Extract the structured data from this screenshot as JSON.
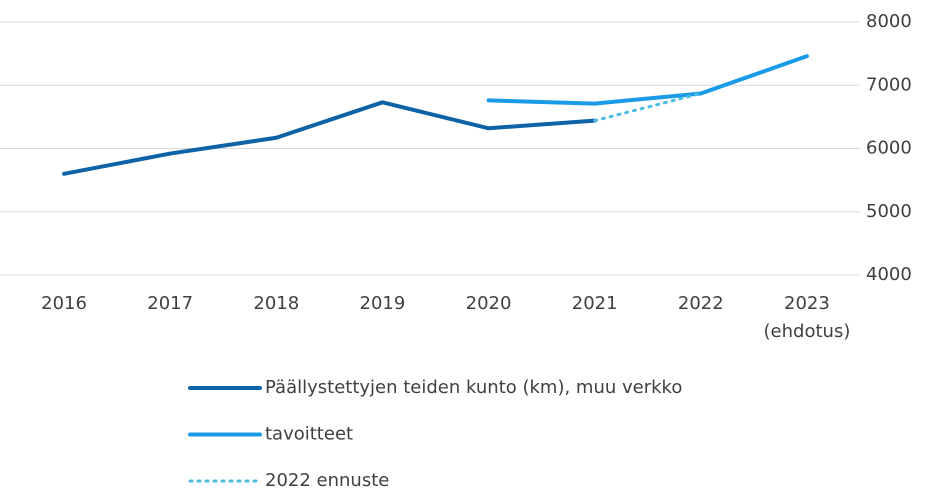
{
  "chart_data": {
    "type": "line",
    "categories": [
      "2016",
      "2017",
      "2018",
      "2019",
      "2020",
      "2021",
      "2022",
      "2023\n(ehdotus)"
    ],
    "series": [
      {
        "name": "Päällystettyjen teiden kunto (km), muu verkko",
        "color": "#0e62a6",
        "style": "solid",
        "values": [
          5600,
          5920,
          6170,
          6730,
          6320,
          6440,
          null,
          null
        ]
      },
      {
        "name": "tavoitteet",
        "color": "#1a9be8",
        "style": "solid",
        "values": [
          null,
          null,
          null,
          null,
          6760,
          6710,
          6870,
          7460
        ]
      },
      {
        "name": "2022 ennuste",
        "color": "#4cbbe6",
        "style": "dotted",
        "values": [
          null,
          null,
          null,
          null,
          null,
          6440,
          6870,
          null
        ]
      }
    ],
    "ylim": [
      4000,
      8000
    ],
    "yticks": [
      4000,
      5000,
      6000,
      7000,
      8000
    ],
    "grid": true,
    "y_axis_side": "right"
  }
}
